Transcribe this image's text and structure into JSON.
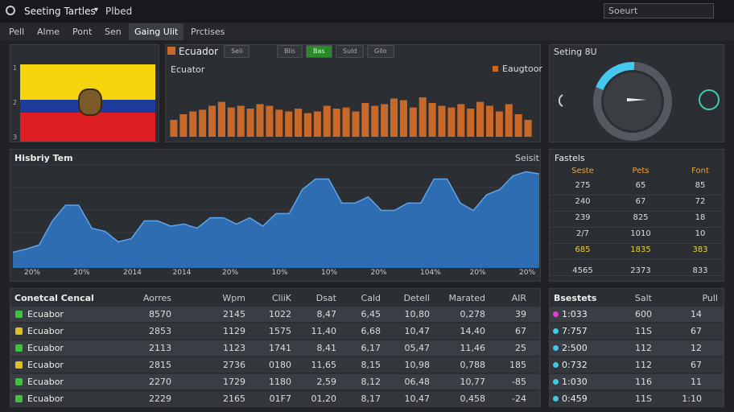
{
  "header": {
    "title": "Seeting Tartles",
    "separator": "▾",
    "subtitle": "Plbed",
    "search": "Soeurt"
  },
  "tabs": {
    "items": [
      "Pell",
      "Alme",
      "Pont",
      "Sen",
      "Gaing Ulit",
      "Prctises"
    ],
    "active": 4
  },
  "flag_panel": {
    "row_labels": [
      "1",
      "2",
      "3"
    ]
  },
  "bar_panel": {
    "title": "Ecuador",
    "controls": [
      "Seli",
      "Blis",
      "Bas",
      "Suld",
      "Gilo"
    ],
    "active_control": 2,
    "chart": {
      "type": "bar",
      "label": "Ecuator",
      "legend": "Eaugtoor",
      "color": "#c8692a",
      "ylim": [
        0,
        100
      ],
      "values": [
        30,
        40,
        45,
        48,
        55,
        62,
        52,
        55,
        50,
        58,
        55,
        48,
        45,
        50,
        42,
        45,
        55,
        50,
        52,
        45,
        60,
        55,
        58,
        68,
        65,
        52,
        70,
        60,
        55,
        52,
        58,
        50,
        62,
        55,
        45,
        58,
        40,
        30
      ]
    }
  },
  "gauge_panel": {
    "title": "Seting 8U"
  },
  "area_panel": {
    "chart": {
      "type": "area",
      "title": "Hisbriy Tem",
      "legend": "Seisit",
      "color": "#2f74c0",
      "ylim": [
        0,
        100
      ],
      "values": [
        15,
        18,
        22,
        45,
        60,
        60,
        38,
        35,
        25,
        28,
        45,
        45,
        40,
        42,
        38,
        48,
        48,
        42,
        48,
        40,
        52,
        52,
        75,
        85,
        85,
        62,
        62,
        68,
        55,
        55,
        62,
        62,
        85,
        85,
        62,
        55,
        70,
        75,
        88,
        92,
        90
      ],
      "x_labels": [
        "20%",
        "20%",
        "2014",
        "2014",
        "20%",
        "10%",
        "10%",
        "20%",
        "104%",
        "20%",
        "20%"
      ]
    }
  },
  "stats_table": {
    "title": "Fastels",
    "columns": [
      "Seste",
      "Pets",
      "Font"
    ],
    "highlight_row": 4,
    "rows": [
      [
        "275",
        "65",
        "85"
      ],
      [
        "240",
        "67",
        "72"
      ],
      [
        "239",
        "825",
        "18"
      ],
      [
        "2/7",
        "1010",
        "10"
      ],
      [
        "685",
        "1835",
        "383"
      ],
      [
        "4565",
        "2373",
        "833"
      ]
    ]
  },
  "main_table": {
    "title": "Conetcal Cencal",
    "columns": [
      "Aorres",
      "Wpm",
      "CliiK",
      "Dsat",
      "Cald",
      "Detell",
      "Marated",
      "AIR"
    ],
    "rows": [
      {
        "icon": "#3cc43c",
        "cells": [
          "Ecuabor",
          "8570",
          "2145",
          "1022",
          "8,47",
          "6,45",
          "10,80",
          "0,278",
          "39"
        ]
      },
      {
        "icon": "#e0c020",
        "cells": [
          "Ecuabor",
          "2853",
          "1129",
          "1575",
          "11,40",
          "6,68",
          "10,47",
          "14,40",
          "67"
        ]
      },
      {
        "icon": "#3cc43c",
        "cells": [
          "Ecuabor",
          "2113",
          "1123",
          "1741",
          "8,41",
          "6,17",
          "05,47",
          "11,46",
          "25"
        ]
      },
      {
        "icon": "#e0c020",
        "cells": [
          "Ecuabor",
          "2815",
          "2736",
          "0180",
          "11,65",
          "8,15",
          "10,98",
          "0,788",
          "185"
        ]
      },
      {
        "icon": "#3cc43c",
        "cells": [
          "Ecuabor",
          "2270",
          "1729",
          "1180",
          "2,59",
          "8,12",
          "06,48",
          "10,77",
          "-85"
        ]
      },
      {
        "icon": "#3cc43c",
        "cells": [
          "Ecuabor",
          "2229",
          "2165",
          "01F7",
          "01,20",
          "8,17",
          "10,47",
          "0,458",
          "-24"
        ]
      }
    ]
  },
  "side_table": {
    "title": "Bsestets",
    "columns": [
      "Salt",
      "Pull"
    ],
    "rows": [
      {
        "dot": "#e040d0",
        "cells": [
          "1:033",
          "600",
          "14"
        ]
      },
      {
        "dot": "#40c8e8",
        "cells": [
          "7:757",
          "11S",
          "67"
        ]
      },
      {
        "dot": "#40c8e8",
        "cells": [
          "2:500",
          "112",
          "12"
        ]
      },
      {
        "dot": "#40c8e8",
        "cells": [
          "0:732",
          "112",
          "67"
        ]
      },
      {
        "dot": "#40c8e8",
        "cells": [
          "1:030",
          "116",
          "11"
        ]
      },
      {
        "dot": "#40c8e8",
        "cells": [
          "0:459",
          "11S",
          "1:10"
        ]
      }
    ]
  }
}
